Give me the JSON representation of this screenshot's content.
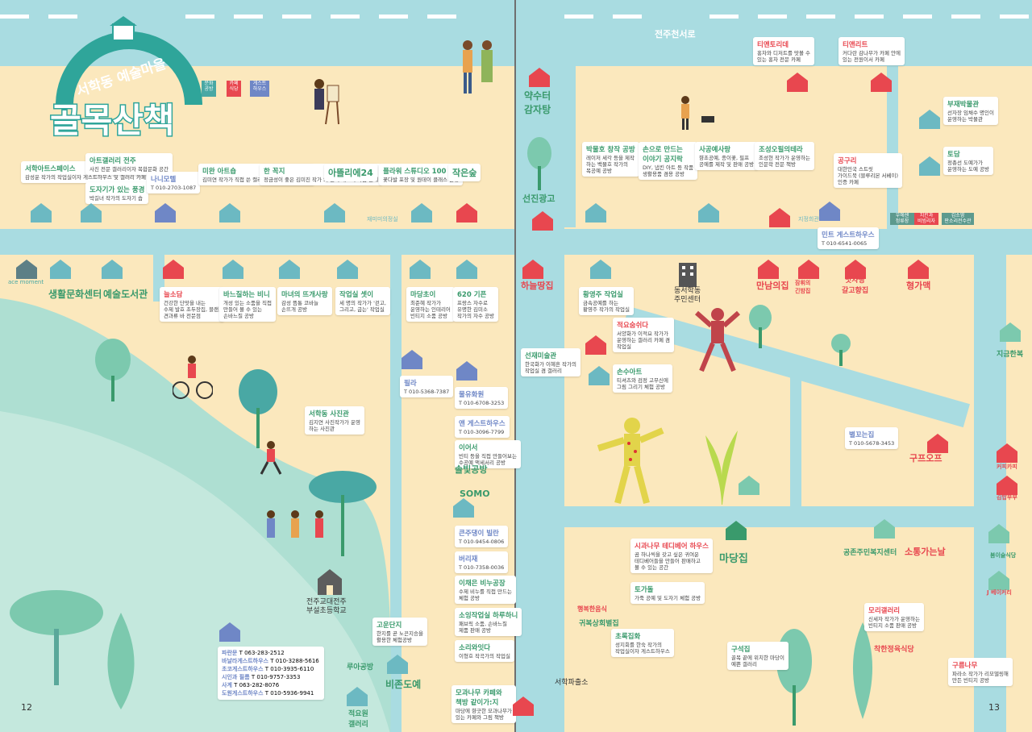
{
  "title": {
    "small": "서학동 예술마을",
    "big": "골목산책"
  },
  "legend": [
    {
      "label": "문화 공방",
      "color": "#49a8a4"
    },
    {
      "label": "카페 식당",
      "color": "#e8474f"
    },
    {
      "label": "게스트 하우스",
      "color": "#6f87c6"
    }
  ],
  "street_label": "전주천서로",
  "page_numbers": {
    "left": "12",
    "right": "13"
  },
  "colors": {
    "road": "#a9dce1",
    "block": "#fbe8bd",
    "green": "#7cc9ae",
    "accent_red": "#e8474f",
    "accent_green": "#3a9a6c",
    "accent_blue": "#6f87c6"
  },
  "left_top": [
    {
      "title": "서학아트스페이스",
      "desc": "감성운 작가의 작업실이자\n게스트하우스 및 갤러리 카페"
    },
    {
      "title": "아트갤러리 전주",
      "desc": "사진 전문 갤러리이자\n복합문화 공간"
    },
    {
      "title": "도자기가 있는 풍경",
      "desc": "박길녀 작가의 도자기 숍"
    },
    {
      "title": "나니모텔",
      "desc": "",
      "phone": "T 010-2703-1087"
    },
    {
      "title": "미완 아트숍",
      "desc": "김미연 작가가 직접 쓴\n캘리그라피와 그림 등 판매"
    },
    {
      "title": "한 꼭지",
      "desc": "정금성이 좋은 김미진 작가\n의 한지 패브릭 작품 판매"
    },
    {
      "title": "아뜰리에24",
      "desc": ""
    },
    {
      "title": "플라워 스튜디오 100",
      "desc": "꽃다발 포장 및\n원데이 클래스 운영"
    },
    {
      "title": "작은숲",
      "desc": ""
    }
  ],
  "mid_left": [
    {
      "title": "늘소담",
      "desc": "건강한 단맛을 내는\n수제 발효 초두장집, 블랜,\n견과류 바 전문점"
    },
    {
      "title": "바느질하는 비니",
      "desc": "개성 있는 소품을 직접\n만들어 볼 수 있는\n손바느질 공방"
    },
    {
      "title": "마녀의 뜨개사랑",
      "desc": "감성 뜸통 코바늘\n손뜨개 공방"
    },
    {
      "title": "작업실 셋이",
      "desc": "세 명의 작가가 '걷고,\n그리고, 굽는' 작업실"
    },
    {
      "title": "마당초이",
      "desc": "최준혜 작가가\n운영하는 인테리어\n빈티지 소품 공방"
    },
    {
      "title": "620 기픈",
      "desc": "프랑스 자수로\n유명한 김미소\n작가의 자수 공방"
    }
  ],
  "labels_left": {
    "ace": "ace moment",
    "center1": "생활문화센터",
    "center2": "예술도서관",
    "jaemi": "재미미의정실",
    "school": "전주교대전주\n부설초등학교"
  },
  "left_lower": [
    {
      "title": "서학동 사진관",
      "desc": "김지연 사진작가가 운영\n하는 사진관"
    },
    {
      "title": "필라",
      "desc": "",
      "phone": "T 010-5368-7387"
    },
    {
      "title": "물유화원",
      "desc": "",
      "phone": "T 010-6708-3253"
    },
    {
      "title": "앤 게스트하우스",
      "desc": "",
      "phone": "T 010-3096-7799"
    },
    {
      "title": "이어서",
      "desc": "빈티 등을 직접 만들어보는\n수공예 액세서리 공방"
    },
    {
      "title": "솔빛공방",
      "desc": ""
    },
    {
      "title": "SOMO",
      "desc": ""
    },
    {
      "title": "큰주댕이 빌란",
      "desc": "",
      "phone": "T 010-9454-0806"
    },
    {
      "title": "버리재",
      "desc": "",
      "phone": "T 010-7358-0036"
    },
    {
      "title": "이채은 비누공장",
      "desc": "수제 비누를 직접 만드는\n체험 공방"
    },
    {
      "title": "소잉작업실 하루하니",
      "desc": "패브릭 소품, 손바느질\n제품 판매 공방"
    },
    {
      "title": "소리와잇다",
      "desc": "이형호 작곡가의 작업실"
    },
    {
      "title": "모과나무 카페와\n책방 같이가:지",
      "desc": "마당에 향긋한 모과나무가\n있는 카페와 그림 책방"
    },
    {
      "title": "고운단지",
      "desc": "한지를 곧 노끈지승을\n활용한 체험공방"
    },
    {
      "title": "루아공방",
      "desc": ""
    },
    {
      "title": "비존도예",
      "desc": ""
    },
    {
      "title": "적요원\n갤러리",
      "desc": ""
    }
  ],
  "left_list": [
    {
      "name": "파란문",
      "phone": "T 063-283-2512"
    },
    {
      "name": "바날라게스트하우스",
      "phone": "T 010-3288-5616"
    },
    {
      "name": "초코게스트하우스",
      "phone": "T 010-3935-6110"
    },
    {
      "name": "시인과 필름",
      "phone": "T 010-9757-3353"
    },
    {
      "name": "사계",
      "phone": "T 063-282-8076"
    },
    {
      "name": "도원게스트하우스",
      "phone": "T 010-5936-9941"
    }
  ],
  "strip_labels": {
    "yaksu": "약수터\n감자탕",
    "seonjin": "선진광고",
    "haneul": "하늘땅집",
    "seohak_police": "서학파출소"
  },
  "right_top": [
    {
      "title": "티앤토리데",
      "desc": "홍차와 디저트를 맛볼 수\n있는 홍차 전문 카페"
    },
    {
      "title": "티앤리트",
      "desc": "커다란 감나무가 카페 안에\n있는 전원이서 카페"
    },
    {
      "title": "부재박물관",
      "desc": "선자장 임채수 명인이\n운영하는 박물관"
    },
    {
      "title": "토담",
      "desc": "정총선 도예가가\n운영하는 도예 공방"
    },
    {
      "title": "박물호 창작 공방",
      "desc": "레이저 세각 등을 제작\n하는 백물호 작가의\n목공예 공방"
    },
    {
      "title": "손으로 만드는\n이야기 공지락",
      "desc": "DIY, 냅킨 아트 등 작품\n생활용품 겸용 공방"
    },
    {
      "title": "사공예사랑",
      "desc": "향초공예, 종이꽃, 필프\n공예를 제작 및 판매 공방"
    },
    {
      "title": "조성오필의테라",
      "desc": "조성현 작가가 운영하는\n인문학 전문 책방"
    },
    {
      "title": "공구리",
      "desc": "대한민국 스트릿\n가이드북 (블루리본 서베이)\n인증 카페"
    },
    {
      "title": "민트 게스트하우스",
      "desc": "",
      "phone": "T 010-6541-0065"
    }
  ],
  "right_top_chips": [
    "우에센\n정류장",
    "치킨과\n비빔리자",
    "김소영\n판소리전수관"
  ],
  "right_top_extra": {
    "jijeong": "지정희관"
  },
  "right_mid": [
    {
      "title": "선재미술관",
      "desc": "한국화가 이혜흔 작가의\n작업실 겸 갤러리"
    },
    {
      "title": "황영주 작업실",
      "desc": "금속공예를 하는\n황영주 작가의 작업실"
    },
    {
      "title": "적요숨쉬다",
      "desc": "서양화가 이적요 작가가\n운영하는 갤러리 카페 겸\n작업실"
    },
    {
      "title": "손수아트",
      "desc": "티셔츠와 검정 고무신에\n그림 그리기 체험 공방"
    },
    {
      "title": "별꼬는집",
      "desc": "",
      "phone": "T 010-5678-3453"
    },
    {
      "title": "시과나무 테디베어 하우스",
      "desc": "곰 하나씩을 갖고 싶은 귀여운\n테디베어들을 만들어 판매하고\n볼 수 있는 공간"
    },
    {
      "title": "토가돌",
      "desc": "가죽 공예 및 도자기 체험 공방"
    },
    {
      "title": "초록집화",
      "desc": "성지회를 한숙 작가의\n작업실이자 게스트하우스"
    },
    {
      "title": "모리갤러리",
      "desc": "신세자 작가가 운영하는\n빈티지 소품 판매 공방"
    },
    {
      "title": "구석집",
      "desc": "골목 끝에 위치한 마당이\n예쁜 갤러리"
    },
    {
      "title": "구름나무",
      "desc": "파라소 작가가 리모델링해\n만든 빈티지 공방"
    }
  ],
  "right_names": {
    "hall": "동서학동\n주민센터",
    "mannam": "만남의집",
    "jamhwi": "잠휘의\n긴밤집",
    "matjaran": "맛자랑\n갈고향집",
    "hyungga": "형가맥",
    "jigeum": "지금한복",
    "gupo": "구프오프",
    "madang": "마당집",
    "gongjeong": "공존주민복지센터",
    "sodong": "소통가는날",
    "bogshan": "행복한음식",
    "gwibok": "귀복상회별집",
    "chakhan": "착한정육식당",
    "cafe1": "커피카피",
    "cafe2": "김밥부부",
    "cafe3": "봄이슬식당",
    "cafe4": "J 베이커리"
  }
}
